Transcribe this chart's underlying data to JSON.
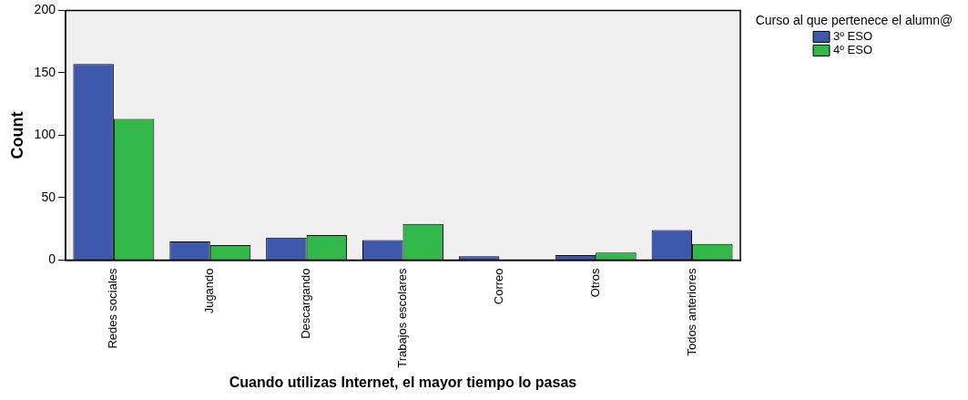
{
  "chart_data": {
    "type": "bar",
    "xlabel": "Cuando utilizas Internet, el mayor tiempo lo pasas",
    "ylabel": "Count",
    "legend_title": "Curso al que pertenece el alumn@",
    "categories": [
      "Redes sociales",
      "Jugando",
      "Descargando",
      "Trabajos escolares",
      "Correo",
      "Otros",
      "Todos anteriores"
    ],
    "series": [
      {
        "name": "3º ESO",
        "color": "#3e58ac",
        "values": [
          157,
          15,
          18,
          16,
          3,
          4,
          24
        ]
      },
      {
        "name": "4º ESO",
        "color": "#31b74a",
        "values": [
          113,
          12,
          20,
          29,
          0,
          6,
          13
        ]
      }
    ],
    "ylim": [
      0,
      200
    ],
    "yticks": [
      0,
      50,
      100,
      150,
      200
    ],
    "grid": false,
    "legend": "top right"
  }
}
